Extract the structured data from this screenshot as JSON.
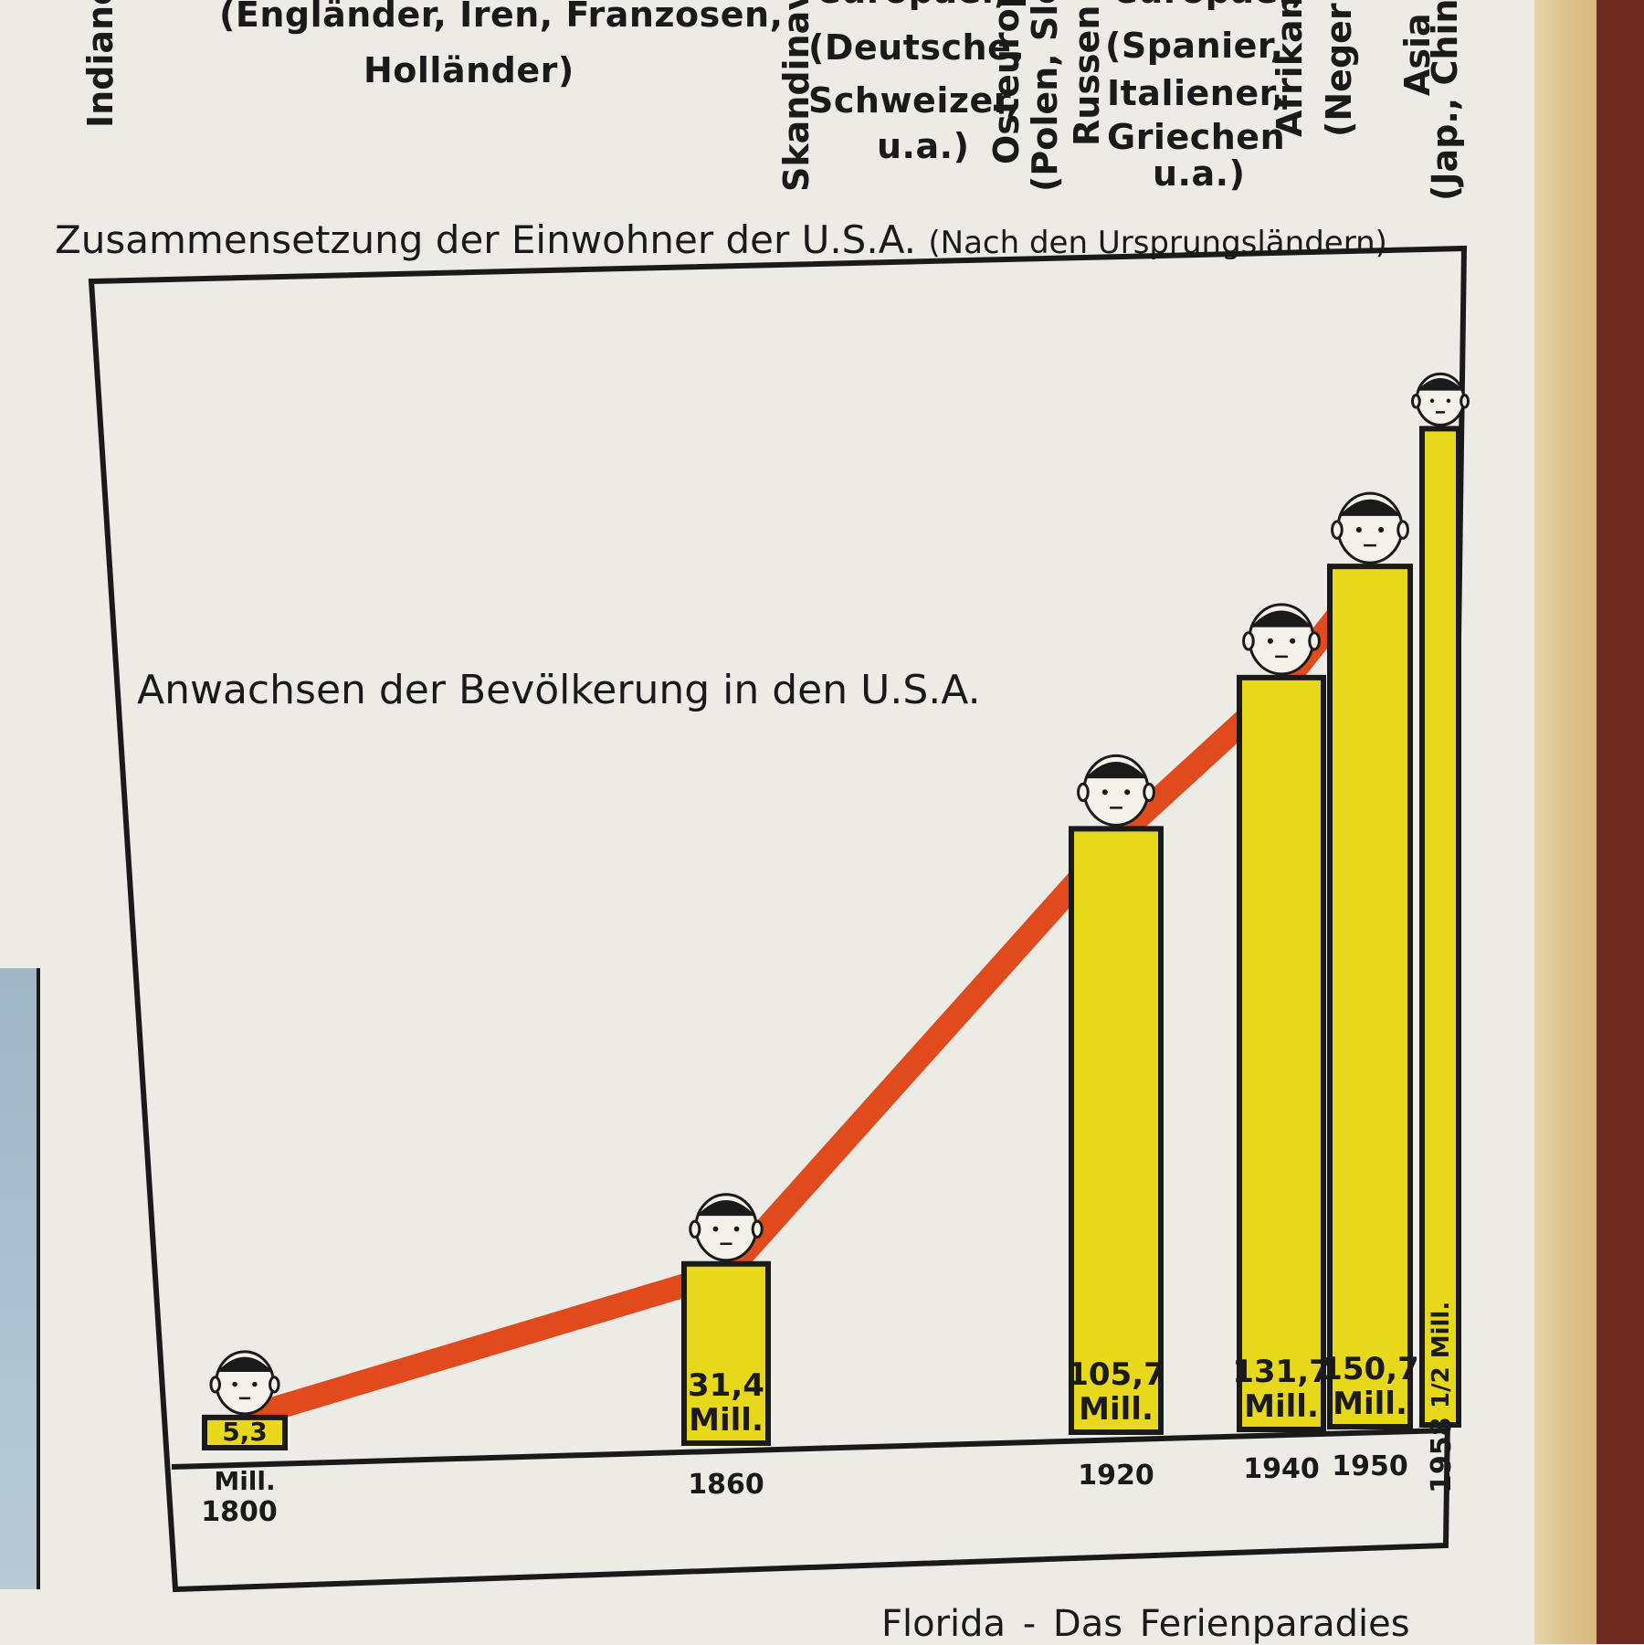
{
  "header": {
    "col1": "Indiane",
    "col2": [
      "(Engländer, Iren, Franzosen,",
      "Holländer)"
    ],
    "col3_vertical": "Skandinavi",
    "col4": [
      "europäer,",
      "(Deutsche,",
      "Schweizer,",
      "u.a.)"
    ],
    "col5_vertical": [
      "Osteurop",
      "(Polen, Slov"
    ],
    "col6_vertical": "Russen",
    "col7": [
      "europäer,",
      "(Spanier,",
      "Italiener,",
      "Griechen",
      "u.a.)"
    ],
    "col8_vertical": [
      "Afrikan",
      "(Neger"
    ],
    "col9_vertical": [
      "Asia",
      "(Jap., Chines"
    ]
  },
  "composition_title": "Zusammensetzung der Einwohner der U.S.A.",
  "composition_subtitle": "(Nach den Ursprungsländern)",
  "footer": "Florida  -  Das Ferienparadies",
  "colors": {
    "bar": "#e8d81c",
    "trend": "#e04a1c",
    "ink": "#1a1a1a",
    "paper": "#ecebe6"
  },
  "icons": [
    "face-icon"
  ],
  "chart_data": {
    "type": "bar",
    "title": "Anwachsen der Bevölkerung in den U.S.A.",
    "xlabel": "",
    "ylabel": "",
    "ylim": [
      0,
      175
    ],
    "categories": [
      "1800",
      "1860",
      "1920",
      "1940",
      "1950",
      "1958"
    ],
    "values": [
      5.3,
      31.4,
      105.7,
      131.7,
      150.7,
      174.5
    ],
    "bar_labels": [
      [
        "5,3",
        "Mill."
      ],
      [
        "31,4",
        "Mill."
      ],
      [
        "105,7",
        "Mill."
      ],
      [
        "131,7",
        "Mill."
      ],
      [
        "150,7",
        "Mill."
      ],
      [
        "1/2 Mill."
      ]
    ],
    "series": [
      {
        "values": [
          5.3,
          31.4,
          105.7,
          131.7,
          150.7,
          174.5
        ]
      }
    ],
    "grid": false,
    "legend": "none"
  }
}
